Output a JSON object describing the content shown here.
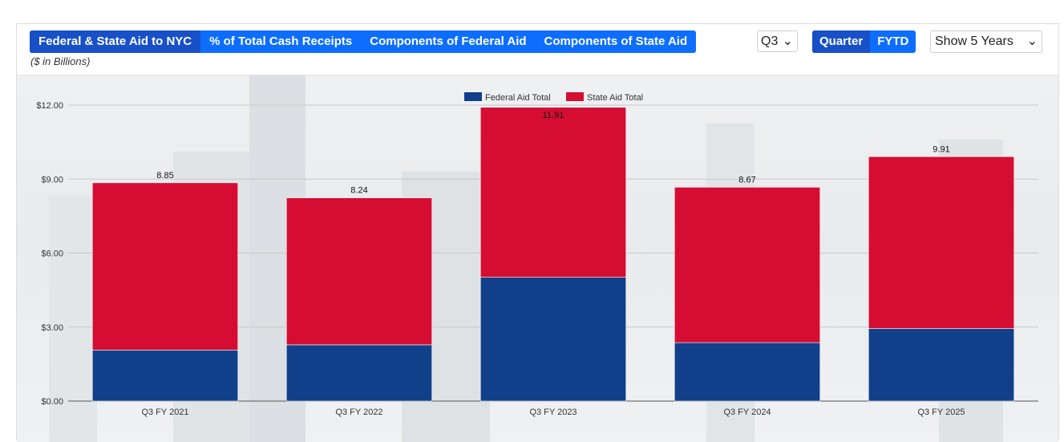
{
  "tabs": [
    {
      "label": "Federal & State Aid to NYC",
      "active": true
    },
    {
      "label": "% of Total Cash Receipts",
      "active": false
    },
    {
      "label": "Components of Federal Aid",
      "active": false
    },
    {
      "label": "Components of State Aid",
      "active": false
    }
  ],
  "subtitle": "($ in Billions)",
  "quarter_select": {
    "value": "Q3",
    "caret": "⌄"
  },
  "period_toggle": [
    {
      "label": "Quarter",
      "active": true
    },
    {
      "label": "FYTD",
      "active": false
    }
  ],
  "years_select": {
    "value": "Show 5 Years",
    "caret": "⌄"
  },
  "colors": {
    "federal": "#123f8a",
    "state": "#d50d33",
    "accent": "#0d6efd"
  },
  "chart_data": {
    "type": "bar",
    "stacked": true,
    "categories": [
      "Q3 FY 2021",
      "Q3 FY 2022",
      "Q3 FY 2023",
      "Q3 FY 2024",
      "Q3 FY 2025"
    ],
    "series": [
      {
        "name": "Federal Aid Total",
        "values": [
          2.07,
          2.28,
          5.02,
          2.37,
          2.94
        ]
      },
      {
        "name": "State Aid Total",
        "values": [
          6.78,
          5.96,
          6.89,
          6.3,
          6.97
        ]
      }
    ],
    "totals": [
      8.85,
      8.24,
      11.91,
      8.67,
      9.91
    ],
    "y_ticks": [
      "$0.00",
      "$3.00",
      "$6.00",
      "$9.00",
      "$12.00"
    ],
    "y_tick_values": [
      0,
      3,
      6,
      9,
      12
    ],
    "ylim": [
      0,
      12
    ],
    "grid": true,
    "legend": "top-center"
  }
}
